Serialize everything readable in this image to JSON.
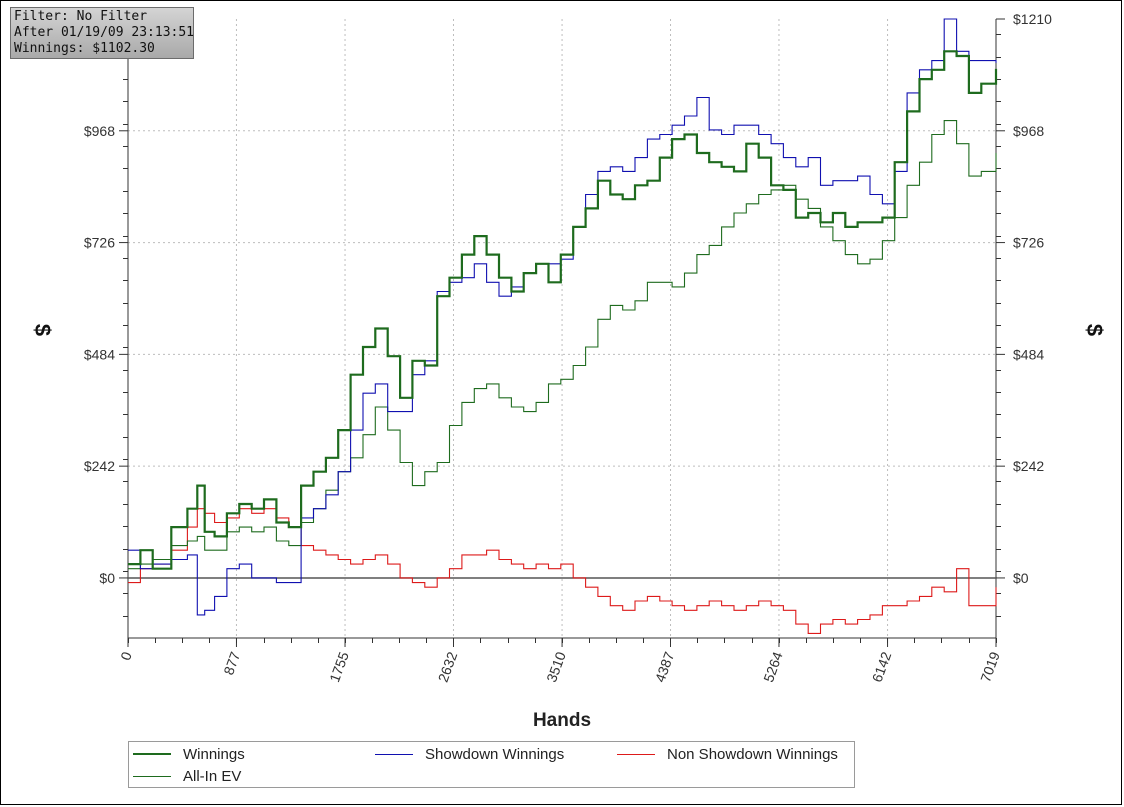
{
  "info": {
    "filter": "Filter: No Filter",
    "after": "After 01/19/09 23:13:51",
    "winnings": "Winnings: $1102.30"
  },
  "colors": {
    "winnings": "#1e6b1e",
    "showdown": "#1010b0",
    "nonshowdown": "#dd1a1a",
    "allin": "#1e6b1e",
    "grid": "#bdbdbd",
    "zero_line": "#555555"
  },
  "chart_data": {
    "type": "line",
    "xlabel": "Hands",
    "ylabel": "$",
    "xlim": [
      0,
      7019
    ],
    "ylim": [
      -130,
      1210
    ],
    "x_ticks": [
      0,
      877,
      1755,
      2632,
      3510,
      4387,
      5264,
      6142,
      7019
    ],
    "y_ticks": [
      0,
      242,
      484,
      726,
      968,
      1210
    ],
    "y_tick_labels": [
      "$0",
      "$242",
      "$484",
      "$726",
      "$968",
      "$1210"
    ],
    "grid": true,
    "legend_position": "bottom",
    "series": [
      {
        "name": "Winnings",
        "x": [
          0,
          100,
          200,
          350,
          480,
          560,
          620,
          700,
          800,
          900,
          1000,
          1100,
          1200,
          1300,
          1400,
          1500,
          1600,
          1700,
          1800,
          1900,
          2000,
          2100,
          2200,
          2300,
          2400,
          2500,
          2600,
          2700,
          2800,
          2900,
          3000,
          3100,
          3200,
          3300,
          3400,
          3500,
          3600,
          3700,
          3800,
          3900,
          4000,
          4100,
          4200,
          4300,
          4400,
          4500,
          4600,
          4700,
          4800,
          4900,
          5000,
          5100,
          5200,
          5300,
          5400,
          5500,
          5600,
          5700,
          5800,
          5900,
          6000,
          6100,
          6200,
          6300,
          6400,
          6500,
          6600,
          6700,
          6800,
          6900,
          7019
        ],
        "y": [
          30,
          60,
          20,
          110,
          150,
          200,
          100,
          90,
          140,
          160,
          150,
          170,
          120,
          110,
          200,
          230,
          260,
          320,
          440,
          500,
          540,
          480,
          390,
          470,
          460,
          610,
          650,
          700,
          740,
          700,
          650,
          620,
          660,
          680,
          640,
          700,
          760,
          800,
          860,
          830,
          820,
          850,
          860,
          910,
          950,
          960,
          920,
          900,
          890,
          880,
          940,
          910,
          850,
          840,
          780,
          790,
          770,
          790,
          760,
          770,
          770,
          780,
          900,
          1010,
          1080,
          1100,
          1140,
          1130,
          1050,
          1070,
          1102
        ]
      },
      {
        "name": "Showdown Winnings",
        "x": [
          0,
          100,
          200,
          350,
          480,
          560,
          620,
          700,
          800,
          900,
          1000,
          1100,
          1200,
          1300,
          1400,
          1500,
          1600,
          1700,
          1800,
          1900,
          2000,
          2100,
          2200,
          2300,
          2400,
          2500,
          2600,
          2700,
          2800,
          2900,
          3000,
          3100,
          3200,
          3300,
          3400,
          3500,
          3600,
          3700,
          3800,
          3900,
          4000,
          4100,
          4200,
          4300,
          4400,
          4500,
          4600,
          4700,
          4800,
          4900,
          5000,
          5100,
          5200,
          5300,
          5400,
          5500,
          5600,
          5700,
          5800,
          5900,
          6000,
          6100,
          6200,
          6300,
          6400,
          6500,
          6600,
          6700,
          6800,
          6900,
          7019
        ],
        "y": [
          60,
          20,
          30,
          40,
          50,
          -80,
          -70,
          -40,
          20,
          30,
          0,
          0,
          -10,
          -10,
          130,
          150,
          180,
          230,
          320,
          400,
          420,
          360,
          360,
          440,
          470,
          620,
          640,
          650,
          680,
          640,
          610,
          630,
          660,
          680,
          680,
          690,
          760,
          830,
          880,
          890,
          880,
          910,
          950,
          960,
          980,
          1000,
          1040,
          970,
          960,
          980,
          980,
          960,
          940,
          910,
          890,
          910,
          850,
          860,
          860,
          870,
          830,
          810,
          880,
          1050,
          1100,
          1120,
          1210,
          1140,
          1120,
          1120,
          1115
        ]
      },
      {
        "name": "Non Showdown Winnings",
        "x": [
          0,
          100,
          200,
          350,
          480,
          560,
          620,
          700,
          800,
          900,
          1000,
          1100,
          1200,
          1300,
          1400,
          1500,
          1600,
          1700,
          1800,
          1900,
          2000,
          2100,
          2200,
          2300,
          2400,
          2500,
          2600,
          2700,
          2800,
          2900,
          3000,
          3100,
          3200,
          3300,
          3400,
          3500,
          3600,
          3700,
          3800,
          3900,
          4000,
          4100,
          4200,
          4300,
          4400,
          4500,
          4600,
          4700,
          4800,
          4900,
          5000,
          5100,
          5200,
          5300,
          5400,
          5500,
          5600,
          5700,
          5800,
          5900,
          6000,
          6100,
          6200,
          6300,
          6400,
          6500,
          6600,
          6700,
          6800,
          6900,
          7019
        ],
        "y": [
          -10,
          20,
          30,
          60,
          110,
          150,
          140,
          120,
          130,
          150,
          140,
          150,
          130,
          110,
          70,
          60,
          50,
          40,
          30,
          40,
          50,
          30,
          0,
          -10,
          -20,
          0,
          20,
          50,
          50,
          60,
          40,
          30,
          20,
          30,
          20,
          30,
          0,
          -20,
          -40,
          -60,
          -70,
          -50,
          -40,
          -50,
          -60,
          -70,
          -60,
          -50,
          -60,
          -70,
          -60,
          -50,
          -60,
          -70,
          -100,
          -120,
          -100,
          -90,
          -100,
          -90,
          -80,
          -60,
          -60,
          -50,
          -40,
          -20,
          -30,
          20,
          -60,
          -60,
          -20
        ]
      },
      {
        "name": "All-In EV",
        "x": [
          0,
          100,
          200,
          350,
          480,
          560,
          620,
          700,
          800,
          900,
          1000,
          1100,
          1200,
          1300,
          1400,
          1500,
          1600,
          1700,
          1800,
          1900,
          2000,
          2100,
          2200,
          2300,
          2400,
          2500,
          2600,
          2700,
          2800,
          2900,
          3000,
          3100,
          3200,
          3300,
          3400,
          3500,
          3600,
          3700,
          3800,
          3900,
          4000,
          4100,
          4200,
          4300,
          4400,
          4500,
          4600,
          4700,
          4800,
          4900,
          5000,
          5100,
          5200,
          5300,
          5400,
          5500,
          5600,
          5700,
          5800,
          5900,
          6000,
          6100,
          6200,
          6300,
          6400,
          6500,
          6600,
          6700,
          6800,
          6900,
          7019
        ],
        "y": [
          20,
          30,
          40,
          70,
          80,
          90,
          60,
          60,
          100,
          110,
          100,
          110,
          80,
          70,
          120,
          150,
          190,
          230,
          260,
          310,
          370,
          320,
          250,
          200,
          230,
          250,
          330,
          380,
          410,
          420,
          390,
          370,
          360,
          380,
          420,
          430,
          460,
          500,
          560,
          590,
          580,
          600,
          640,
          640,
          630,
          660,
          700,
          720,
          760,
          790,
          810,
          830,
          840,
          850,
          820,
          800,
          760,
          730,
          700,
          680,
          690,
          730,
          780,
          850,
          900,
          960,
          990,
          940,
          870,
          880,
          920
        ]
      }
    ]
  }
}
